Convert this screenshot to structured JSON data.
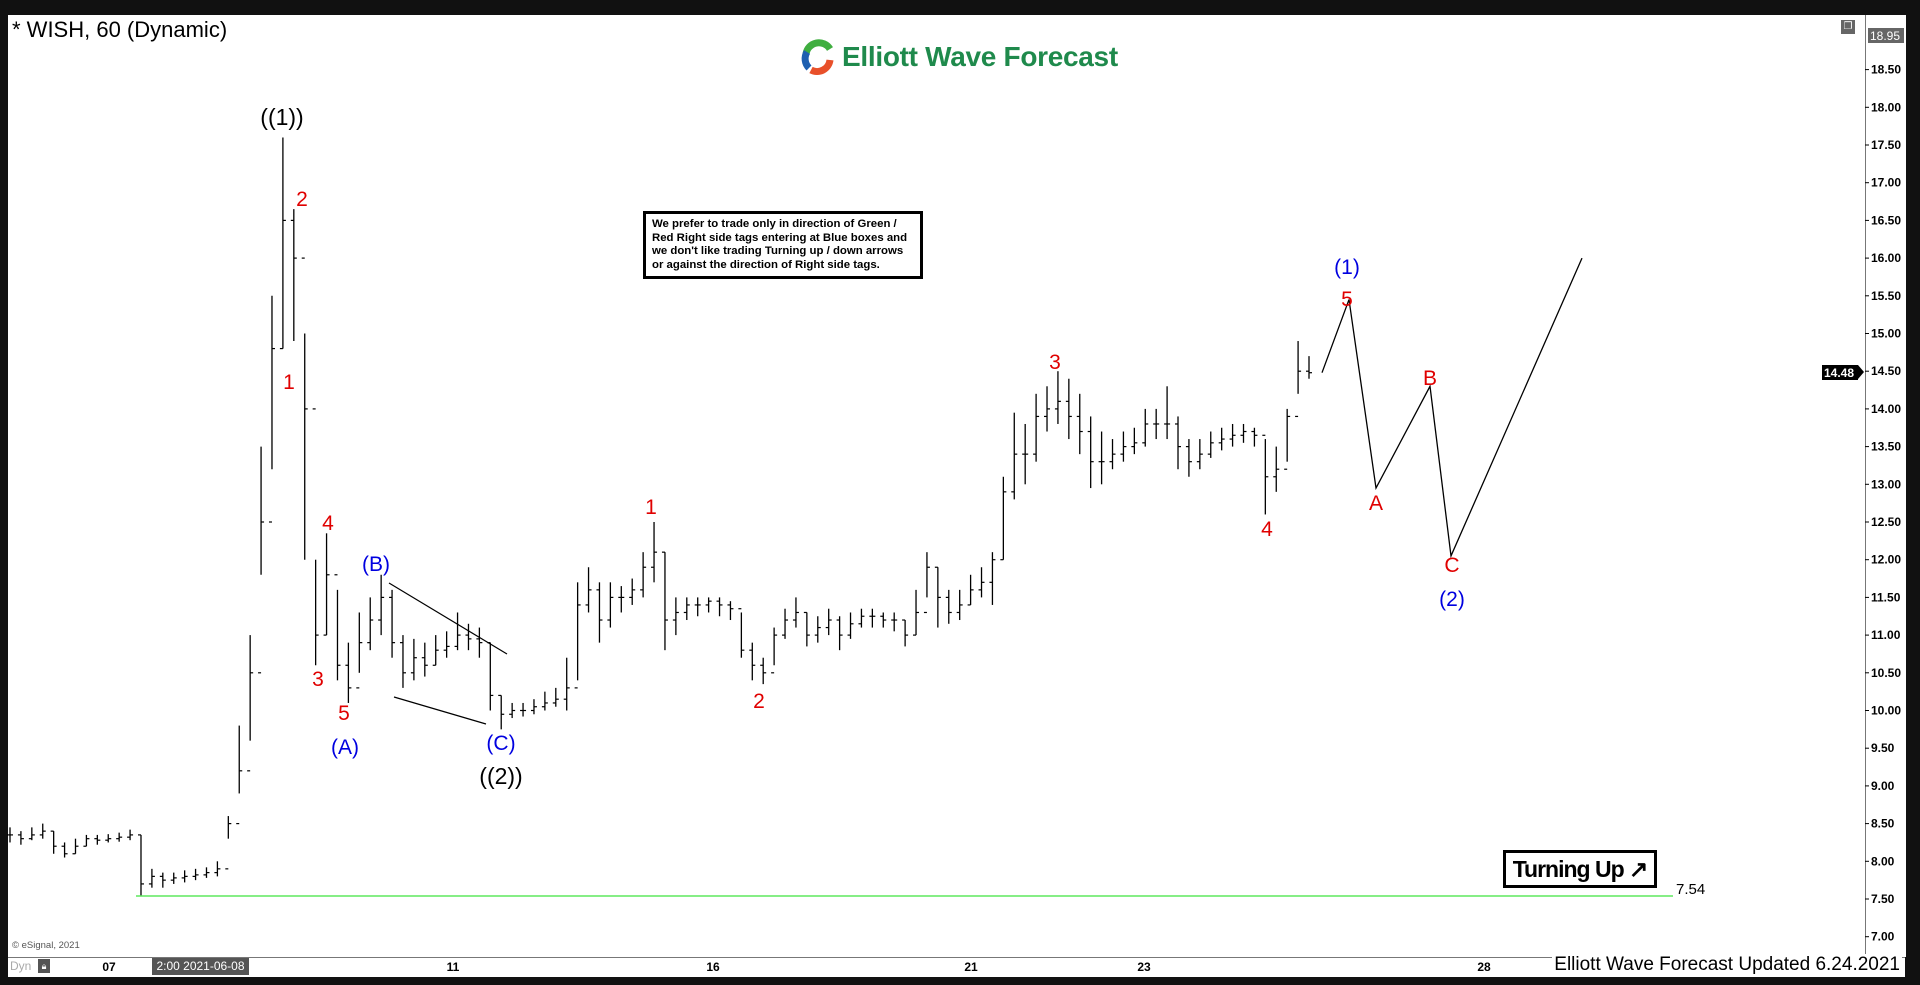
{
  "header": {
    "title": "* WISH, 60 (Dynamic)",
    "logo_text": "Elliott Wave Forecast"
  },
  "note": "We prefer to trade only in direction of Green / Red Right side tags entering at Blue boxes and we don't like trading Turning up / down arrows or against the direction of Right side tags.",
  "tag": {
    "label": "Turning Up",
    "icon": "arrow-up-right-icon"
  },
  "footer": {
    "updated": "Elliott Wave Forecast Updated 6.24.2021",
    "copyright": "© eSignal, 2021",
    "dyn": "Dyn",
    "cursor_date": "2:00 2021-06-08"
  },
  "icons": {
    "restore": "restore-window-icon",
    "lock": "lock-icon"
  },
  "colors": {
    "support_line": "#5ee85e",
    "wave_red": "#e00000",
    "wave_blue": "#0000e0",
    "bars": "#000000",
    "logo_green": "#1f8a4c"
  },
  "chart_data": {
    "type": "ohlc",
    "symbol": "WISH",
    "interval": "60",
    "ylim": [
      7.0,
      18.95
    ],
    "y_ticks": [
      "7.00",
      "7.50",
      "8.00",
      "8.50",
      "9.00",
      "9.50",
      "10.00",
      "10.50",
      "11.00",
      "11.50",
      "12.00",
      "12.50",
      "13.00",
      "13.50",
      "14.00",
      "14.50",
      "15.00",
      "15.50",
      "16.00",
      "16.50",
      "17.00",
      "17.50",
      "18.00",
      "18.50"
    ],
    "x_ticks": [
      "07",
      "11",
      "16",
      "21",
      "23",
      "28"
    ],
    "axis_tags": {
      "top": "18.95",
      "last": "14.48"
    },
    "support": {
      "value": 7.54,
      "label": "7.54"
    },
    "bars_hlc": [
      [
        8.45,
        8.25,
        8.35
      ],
      [
        8.4,
        8.22,
        8.3
      ],
      [
        8.45,
        8.28,
        8.35
      ],
      [
        8.5,
        8.3,
        8.4
      ],
      [
        8.4,
        8.1,
        8.2
      ],
      [
        8.25,
        8.05,
        8.1
      ],
      [
        8.3,
        8.1,
        8.2
      ],
      [
        8.35,
        8.2,
        8.3
      ],
      [
        8.35,
        8.22,
        8.28
      ],
      [
        8.36,
        8.25,
        8.3
      ],
      [
        8.38,
        8.26,
        8.32
      ],
      [
        8.42,
        8.28,
        8.35
      ],
      [
        8.35,
        7.54,
        7.7
      ],
      [
        7.9,
        7.65,
        7.8
      ],
      [
        7.85,
        7.65,
        7.75
      ],
      [
        7.85,
        7.7,
        7.78
      ],
      [
        7.88,
        7.72,
        7.8
      ],
      [
        7.9,
        7.75,
        7.82
      ],
      [
        7.92,
        7.78,
        7.85
      ],
      [
        8.0,
        7.8,
        7.9
      ],
      [
        8.6,
        8.3,
        8.5
      ],
      [
        9.8,
        8.9,
        9.2
      ],
      [
        11.0,
        9.6,
        10.5
      ],
      [
        13.5,
        11.8,
        12.5
      ],
      [
        15.5,
        13.2,
        14.8
      ],
      [
        17.6,
        14.8,
        16.5
      ],
      [
        16.65,
        14.9,
        16.0
      ],
      [
        15.0,
        12.0,
        14.0
      ],
      [
        12.0,
        10.6,
        11.0
      ],
      [
        12.35,
        11.0,
        11.8
      ],
      [
        11.6,
        10.4,
        10.6
      ],
      [
        10.9,
        10.1,
        10.3
      ],
      [
        11.3,
        10.5,
        10.9
      ],
      [
        11.5,
        10.8,
        11.2
      ],
      [
        11.8,
        11.0,
        11.5
      ],
      [
        11.6,
        10.7,
        10.9
      ],
      [
        11.0,
        10.3,
        10.5
      ],
      [
        10.95,
        10.4,
        10.7
      ],
      [
        10.9,
        10.45,
        10.6
      ],
      [
        11.0,
        10.6,
        10.8
      ],
      [
        11.05,
        10.7,
        10.85
      ],
      [
        11.3,
        10.8,
        11.0
      ],
      [
        11.15,
        10.8,
        10.95
      ],
      [
        11.1,
        10.7,
        10.9
      ],
      [
        10.9,
        10.0,
        10.2
      ],
      [
        10.2,
        9.75,
        9.95
      ],
      [
        10.1,
        9.9,
        10.0
      ],
      [
        10.1,
        9.92,
        10.0
      ],
      [
        10.15,
        9.95,
        10.05
      ],
      [
        10.25,
        10.0,
        10.1
      ],
      [
        10.3,
        10.05,
        10.15
      ],
      [
        10.7,
        10.0,
        10.3
      ],
      [
        11.7,
        10.4,
        11.4
      ],
      [
        11.9,
        11.3,
        11.6
      ],
      [
        11.7,
        10.9,
        11.2
      ],
      [
        11.7,
        11.1,
        11.5
      ],
      [
        11.65,
        11.3,
        11.5
      ],
      [
        11.75,
        11.4,
        11.6
      ],
      [
        12.1,
        11.5,
        11.9
      ],
      [
        12.5,
        11.7,
        12.1
      ],
      [
        12.1,
        10.8,
        11.2
      ],
      [
        11.5,
        11.0,
        11.3
      ],
      [
        11.5,
        11.2,
        11.4
      ],
      [
        11.5,
        11.25,
        11.4
      ],
      [
        11.5,
        11.3,
        11.45
      ],
      [
        11.5,
        11.25,
        11.4
      ],
      [
        11.45,
        11.2,
        11.35
      ],
      [
        11.3,
        10.7,
        10.8
      ],
      [
        10.9,
        10.4,
        10.6
      ],
      [
        10.7,
        10.35,
        10.5
      ],
      [
        11.1,
        10.6,
        11.0
      ],
      [
        11.35,
        10.95,
        11.2
      ],
      [
        11.5,
        11.1,
        11.3
      ],
      [
        11.3,
        10.85,
        11.0
      ],
      [
        11.25,
        10.9,
        11.1
      ],
      [
        11.35,
        11.0,
        11.2
      ],
      [
        11.25,
        10.8,
        11.0
      ],
      [
        11.3,
        10.95,
        11.15
      ],
      [
        11.35,
        11.1,
        11.25
      ],
      [
        11.35,
        11.1,
        11.25
      ],
      [
        11.3,
        11.1,
        11.2
      ],
      [
        11.3,
        11.05,
        11.2
      ],
      [
        11.2,
        10.85,
        11.0
      ],
      [
        11.6,
        11.0,
        11.3
      ],
      [
        12.1,
        11.5,
        11.9
      ],
      [
        11.9,
        11.1,
        11.5
      ],
      [
        11.6,
        11.15,
        11.3
      ],
      [
        11.6,
        11.2,
        11.4
      ],
      [
        11.8,
        11.4,
        11.6
      ],
      [
        11.9,
        11.5,
        11.7
      ],
      [
        12.1,
        11.4,
        12.0
      ],
      [
        13.1,
        12.0,
        12.9
      ],
      [
        13.95,
        12.8,
        13.4
      ],
      [
        13.8,
        13.0,
        13.4
      ],
      [
        14.2,
        13.3,
        13.9
      ],
      [
        14.3,
        13.7,
        14.0
      ],
      [
        14.5,
        13.8,
        14.1
      ],
      [
        14.4,
        13.6,
        13.9
      ],
      [
        14.2,
        13.4,
        13.7
      ],
      [
        13.9,
        12.95,
        13.3
      ],
      [
        13.7,
        13.0,
        13.3
      ],
      [
        13.6,
        13.2,
        13.4
      ],
      [
        13.7,
        13.3,
        13.5
      ],
      [
        13.75,
        13.4,
        13.55
      ],
      [
        14.0,
        13.5,
        13.8
      ],
      [
        14.0,
        13.6,
        13.8
      ],
      [
        14.3,
        13.6,
        13.8
      ],
      [
        13.9,
        13.2,
        13.5
      ],
      [
        13.6,
        13.1,
        13.3
      ],
      [
        13.6,
        13.2,
        13.4
      ],
      [
        13.7,
        13.35,
        13.55
      ],
      [
        13.75,
        13.45,
        13.6
      ],
      [
        13.8,
        13.5,
        13.65
      ],
      [
        13.8,
        13.55,
        13.7
      ],
      [
        13.75,
        13.5,
        13.65
      ],
      [
        13.6,
        12.6,
        13.1
      ],
      [
        13.5,
        12.9,
        13.2
      ],
      [
        14.0,
        13.3,
        13.9
      ],
      [
        14.9,
        14.2,
        14.5
      ],
      [
        14.7,
        14.4,
        14.48
      ]
    ],
    "projection_prices": [
      14.48,
      15.45,
      12.95,
      14.3,
      12.05,
      16.0
    ],
    "wave_labels": [
      {
        "text": "((1))",
        "color": "black"
      },
      {
        "text": "2",
        "color": "red"
      },
      {
        "text": "1",
        "color": "red"
      },
      {
        "text": "4",
        "color": "red"
      },
      {
        "text": "3",
        "color": "red"
      },
      {
        "text": "5",
        "color": "red"
      },
      {
        "text": "(A)",
        "color": "blue"
      },
      {
        "text": "(B)",
        "color": "blue"
      },
      {
        "text": "(C)",
        "color": "blue"
      },
      {
        "text": "((2))",
        "color": "black"
      },
      {
        "text": "1",
        "color": "red"
      },
      {
        "text": "2",
        "color": "red"
      },
      {
        "text": "3",
        "color": "red"
      },
      {
        "text": "4",
        "color": "red"
      },
      {
        "text": "(1)",
        "color": "blue"
      },
      {
        "text": "5",
        "color": "red"
      },
      {
        "text": "A",
        "color": "red"
      },
      {
        "text": "B",
        "color": "red"
      },
      {
        "text": "C",
        "color": "red"
      },
      {
        "text": "(2)",
        "color": "blue"
      }
    ]
  }
}
